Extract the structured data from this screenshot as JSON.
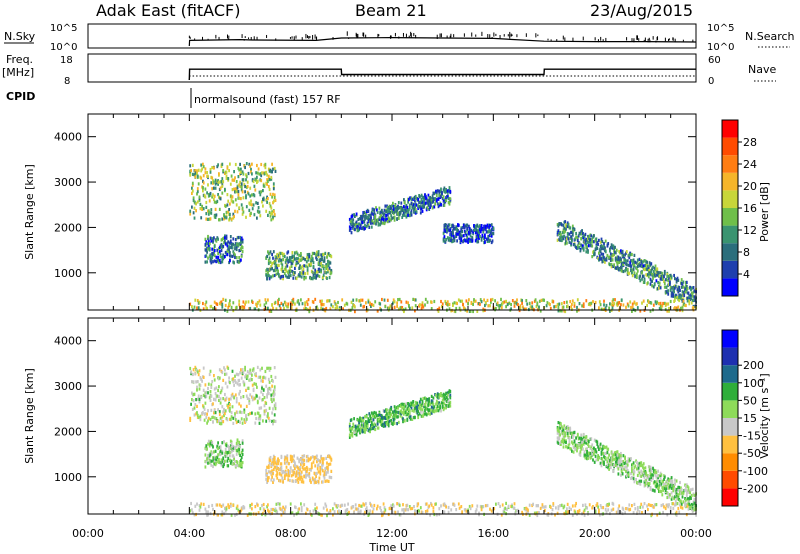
{
  "header": {
    "station": "Adak East (fitACF)",
    "beam": "Beam 21",
    "date": "23/Aug/2015"
  },
  "top_panels": {
    "nsky": {
      "label": "N.Sky",
      "ticks": [
        "10^5",
        "10^0"
      ]
    },
    "nsearch": {
      "label": "N.Search",
      "ticks": [
        "10^5",
        "10^0"
      ]
    },
    "freq": {
      "label_line1": "Freq.",
      "label_line2": "[MHz]",
      "ticks": [
        "18",
        "8"
      ]
    },
    "nave": {
      "label": "Nave",
      "ticks": [
        "60",
        "0"
      ]
    },
    "cpid": {
      "label": "CPID",
      "text": "normalsound (fast) 157 RF"
    }
  },
  "colors": {
    "power": [
      "#0000ff",
      "#1e3fae",
      "#2b6e7c",
      "#3a9470",
      "#6fbf4a",
      "#c8d63a",
      "#f5b52a",
      "#ff7d12",
      "#ff4b00",
      "#ff0000"
    ],
    "velocity": [
      "#ff0000",
      "#ff4b00",
      "#ff8c00",
      "#ffc040",
      "#c8c8c8",
      "#8edb5a",
      "#2fae3a",
      "#1e6a8c",
      "#1e30b0",
      "#0000ff"
    ]
  },
  "chart_data": [
    {
      "type": "line",
      "panel": "N.Sky / N.Search",
      "x_unit": "hour UT",
      "x": [
        0,
        4,
        4.01,
        6,
        6.5,
        9,
        10,
        12,
        14,
        16,
        18,
        20,
        22,
        24
      ],
      "series": [
        {
          "name": "N.Sky",
          "log10_values": [
            null,
            0,
            1.4,
            1.6,
            1.5,
            1.4,
            2.0,
            2.1,
            2.0,
            1.9,
            1.2,
            1.1,
            1.1,
            1.0
          ]
        }
      ],
      "ylim_log10": [
        0,
        5
      ]
    },
    {
      "type": "line",
      "panel": "Freq. / Nave",
      "x_unit": "hour UT",
      "x": [
        0,
        4,
        4.01,
        10,
        10.01,
        18,
        18.01,
        24
      ],
      "series": [
        {
          "name": "Freq.",
          "values": [
            null,
            8,
            12.5,
            12.5,
            10.3,
            10.3,
            12.5,
            12.5
          ]
        },
        {
          "name": "Nave",
          "values": [
            null,
            0,
            10,
            10,
            10,
            10,
            10,
            10
          ]
        }
      ],
      "ylim": [
        8,
        18
      ]
    },
    {
      "type": "heatmap",
      "panel": "Power",
      "xlabel": "",
      "ylabel": "Slant Range [km]",
      "xlim": [
        0,
        24
      ],
      "ylim": [
        180,
        4500
      ],
      "yticks": [
        1000,
        2000,
        3000,
        4000
      ],
      "colorbar": {
        "label": "Power [dB]",
        "range": [
          0,
          32
        ],
        "ticks": [
          4,
          8,
          12,
          16,
          20,
          24,
          28
        ]
      },
      "regions": [
        {
          "t0": 4.0,
          "t1": 7.4,
          "r0": 2200,
          "r1": 3450,
          "value": 15
        },
        {
          "t0": 4.6,
          "t1": 6.1,
          "r0": 1250,
          "r1": 1850,
          "value": 8
        },
        {
          "t0": 7.0,
          "t1": 9.6,
          "r0": 900,
          "r1": 1500,
          "value": 12
        },
        {
          "t0": 10.3,
          "t1": 14.3,
          "r0": 1900,
          "r1": 2900,
          "value": 8
        },
        {
          "t0": 14.0,
          "t1": 16.0,
          "r0": 1700,
          "r1": 2100,
          "value": 6
        },
        {
          "t0": 18.5,
          "t1": 24.0,
          "r0": 600,
          "r1": 2200,
          "value": 10
        },
        {
          "t0": 4.0,
          "t1": 24.0,
          "r0": 180,
          "r1": 450,
          "value": 18
        }
      ]
    },
    {
      "type": "heatmap",
      "panel": "Velocity",
      "xlabel": "Time UT",
      "ylabel": "Slant Range [km]",
      "xlim": [
        0,
        24
      ],
      "ylim": [
        180,
        4500
      ],
      "yticks": [
        1000,
        2000,
        3000,
        4000
      ],
      "xticks": [
        "00:00",
        "04:00",
        "08:00",
        "12:00",
        "16:00",
        "20:00",
        "00:00"
      ],
      "colorbar": {
        "label": "Velocity [m s⁻¹]",
        "ticks": [
          -200,
          -100,
          -50,
          -15,
          15,
          50,
          100,
          200
        ]
      },
      "regions": [
        {
          "t0": 4.0,
          "t1": 7.4,
          "r0": 2200,
          "r1": 3450,
          "value": -20
        },
        {
          "t0": 4.6,
          "t1": 6.1,
          "r0": 1250,
          "r1": 1850,
          "value": 0
        },
        {
          "t0": 7.0,
          "t1": 9.6,
          "r0": 900,
          "r1": 1500,
          "value": -60
        },
        {
          "t0": 10.3,
          "t1": 14.3,
          "r0": 1900,
          "r1": 2900,
          "value": 20
        },
        {
          "t0": 18.5,
          "t1": 24.0,
          "r0": 600,
          "r1": 2200,
          "value": 0
        },
        {
          "t0": 4.0,
          "t1": 24.0,
          "r0": 180,
          "r1": 450,
          "value": -40
        }
      ]
    }
  ]
}
